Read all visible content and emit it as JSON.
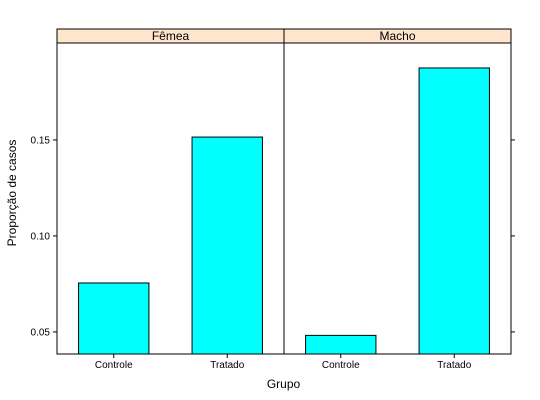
{
  "chart_data": {
    "type": "bar",
    "title": "",
    "xlabel": "Grupo",
    "ylabel": "Proporção de casos",
    "categories": [
      "Controle",
      "Tratado"
    ],
    "panels": [
      {
        "name": "Fêmea",
        "values": [
          0.0755,
          0.1515
        ]
      },
      {
        "name": "Macho",
        "values": [
          0.0482,
          0.1875
        ]
      }
    ],
    "ylim": [
      0.0385,
      0.2005
    ],
    "yticks": [
      0.05,
      0.1,
      0.15
    ],
    "ytick_labels": [
      "0.05",
      "0.10",
      "0.15"
    ],
    "grid": false,
    "legend": "none",
    "colors": {
      "bar_fill": "#00ffff",
      "strip_fill": "#ffe5cc",
      "axis": "#000000"
    }
  }
}
